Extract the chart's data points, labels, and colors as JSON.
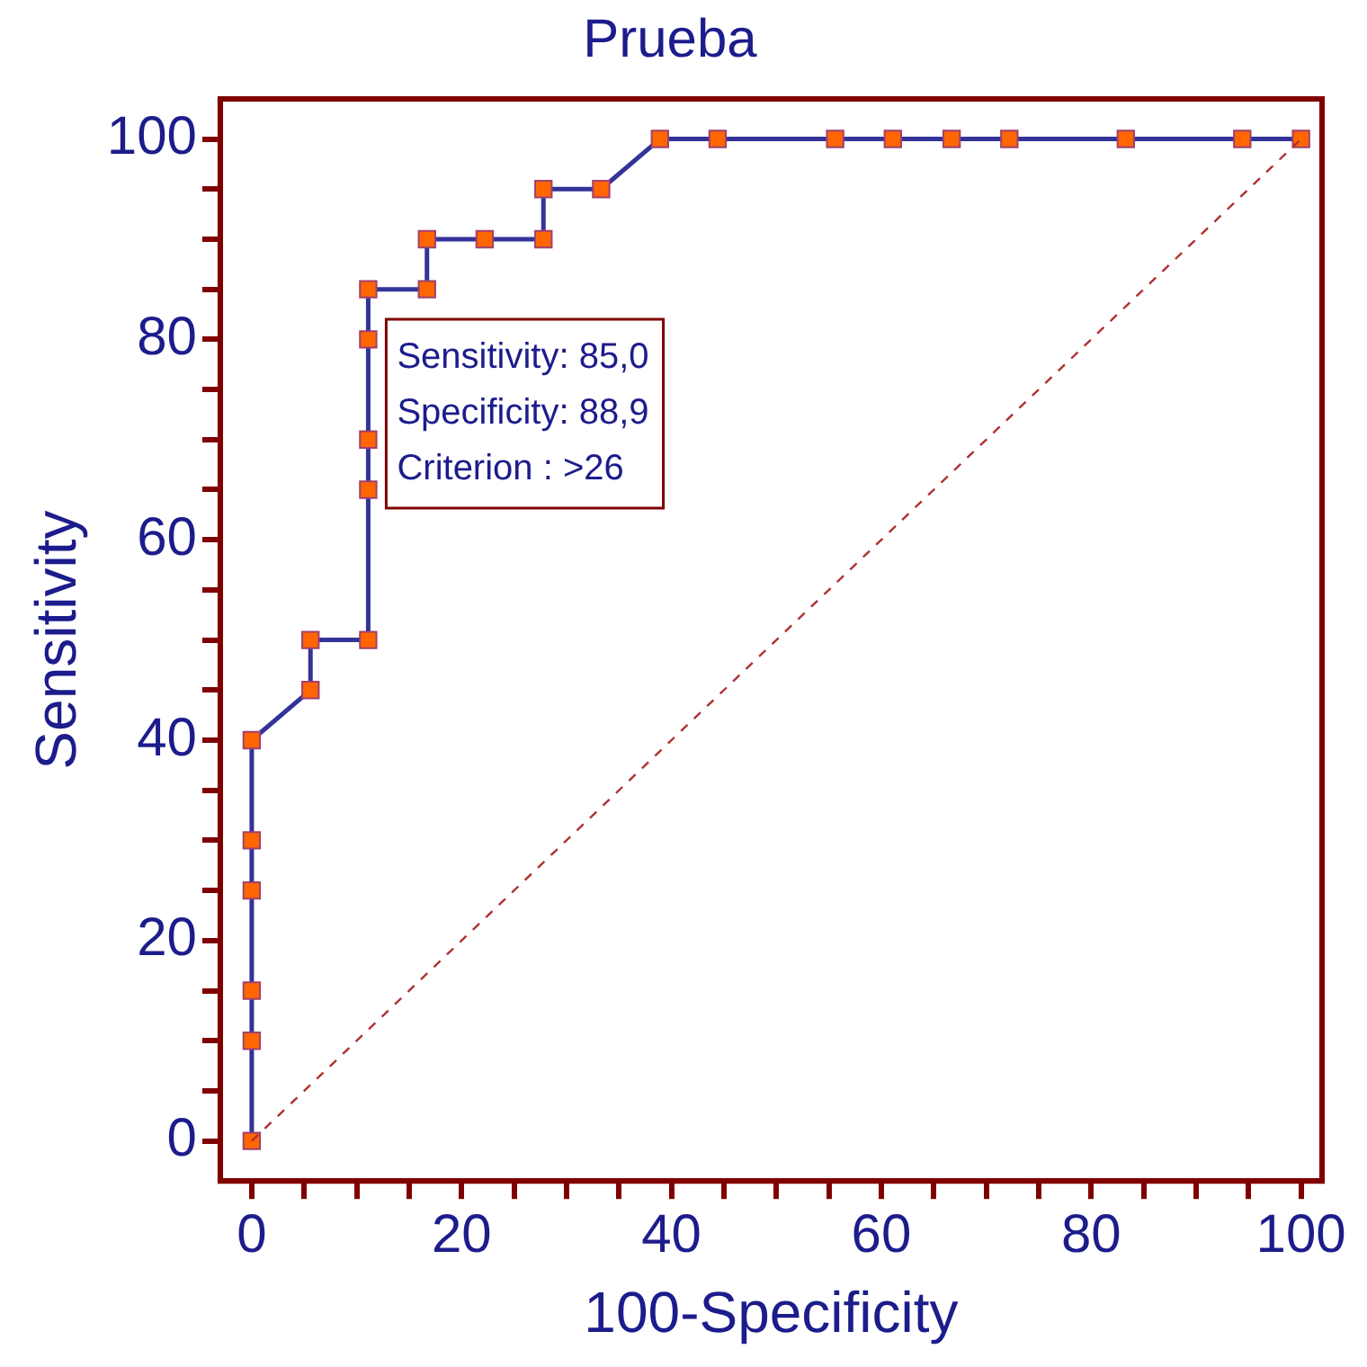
{
  "chart_data": {
    "type": "line",
    "title": "Prueba",
    "xlabel": "100-Specificity",
    "ylabel": "Sensitivity",
    "series": [
      {
        "type": "line",
        "color": "#333399",
        "marker": "square",
        "line_style": "solid",
        "x": [
          0,
          0,
          0,
          0,
          0,
          0,
          5.6,
          5.6,
          11.1,
          11.1,
          11.1,
          11.1,
          11.1,
          16.7,
          16.7,
          22.2,
          27.8,
          27.8,
          33.3,
          38.9,
          44.4,
          55.6,
          61.1,
          66.7,
          72.2,
          83.3,
          94.4,
          100
        ],
        "values": [
          0,
          10,
          15,
          25,
          30,
          40,
          45,
          50,
          50,
          65,
          70,
          80,
          85,
          85,
          90,
          90,
          90,
          95,
          95,
          100,
          100,
          100,
          100,
          100,
          100,
          100,
          100,
          100
        ]
      },
      {
        "type": "line",
        "color": "#b03030",
        "marker": "none",
        "line_style": "dashed",
        "x": [
          0,
          100
        ],
        "values": [
          0,
          100
        ]
      }
    ],
    "xlim": [
      -3,
      102
    ],
    "ylim": [
      -4,
      104
    ],
    "xticks": [
      0,
      {
        "value": 5,
        "label": null
      },
      {
        "value": 10,
        "label": null
      },
      {
        "value": 15,
        "label": null
      },
      20,
      {
        "value": 25,
        "label": null
      },
      {
        "value": 30,
        "label": null
      },
      {
        "value": 35,
        "label": null
      },
      40,
      {
        "value": 45,
        "label": null
      },
      {
        "value": 50,
        "label": null
      },
      {
        "value": 55,
        "label": null
      },
      60,
      {
        "value": 65,
        "label": null
      },
      {
        "value": 70,
        "label": null
      },
      {
        "value": 75,
        "label": null
      },
      80,
      {
        "value": 85,
        "label": null
      },
      {
        "value": 90,
        "label": null
      },
      {
        "value": 95,
        "label": null
      },
      100
    ],
    "yticks": [
      0,
      {
        "value": 5,
        "label": null
      },
      {
        "value": 10,
        "label": null
      },
      {
        "value": 15,
        "label": null
      },
      20,
      {
        "value": 25,
        "label": null
      },
      {
        "value": 30,
        "label": null
      },
      {
        "value": 35,
        "label": null
      },
      40,
      {
        "value": 45,
        "label": null
      },
      {
        "value": 50,
        "label": null
      },
      {
        "value": 55,
        "label": null
      },
      60,
      {
        "value": 65,
        "label": null
      },
      {
        "value": 70,
        "label": null
      },
      {
        "value": 75,
        "label": null
      },
      80,
      {
        "value": 85,
        "label": null
      },
      {
        "value": 90,
        "label": null
      },
      {
        "value": 95,
        "label": null
      },
      100
    ],
    "grid": false,
    "legend": false,
    "annotations": [
      "Sensitivity: 85,0",
      "Specificity: 88,9",
      "Criterion : >26"
    ]
  }
}
